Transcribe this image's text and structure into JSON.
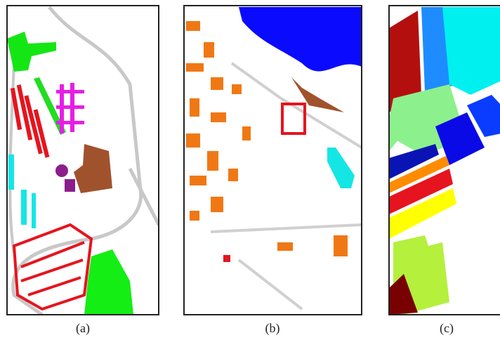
{
  "panels": [
    {
      "caption": "(a)"
    },
    {
      "caption": "(b)"
    },
    {
      "caption": "(c)"
    }
  ]
}
